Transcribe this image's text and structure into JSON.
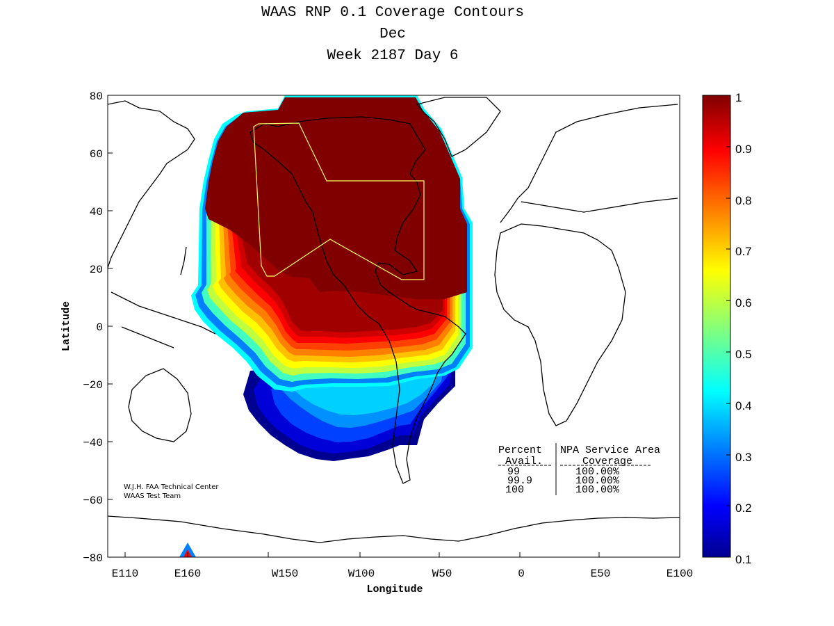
{
  "title": {
    "line1": "WAAS RNP 0.1 Coverage Contours",
    "line2": "Dec",
    "line3": "Week 2187 Day 6"
  },
  "axes": {
    "xlabel": "Longitude",
    "ylabel": "Latitude",
    "x_ticks": [
      "E110",
      "E160",
      "W150",
      "W100",
      "W50",
      "0",
      "E50",
      "E100"
    ],
    "y_ticks": [
      "80",
      "60",
      "40",
      "20",
      "0",
      "−20",
      "−40",
      "−60",
      "−80"
    ]
  },
  "colorbar": {
    "ticks": [
      "1",
      "0.9",
      "0.8",
      "0.7",
      "0.6",
      "0.5",
      "0.4",
      "0.3",
      "0.2",
      "0.1"
    ],
    "colors": [
      "#00008f",
      "#0000ff",
      "#00ffff",
      "#ffff00",
      "#ff0000",
      "#800000"
    ]
  },
  "credit": {
    "line1": "W.J.H. FAA Technical Center",
    "line2": "WAAS Test Team"
  },
  "coverage_table": {
    "col1_header": "Percent",
    "col1_sub": "Avail.",
    "col2_header": "NPA Service Area",
    "col2_sub": "Coverage",
    "rows": [
      {
        "avail": "99",
        "coverage": "100.00%"
      },
      {
        "avail": "99.9",
        "coverage": "100.00%"
      },
      {
        "avail": "100",
        "coverage": "100.00%"
      }
    ]
  },
  "chart_data": {
    "type": "heatmap",
    "x_range_deg_east": [
      100,
      460
    ],
    "y_range_lat": [
      -80,
      80
    ],
    "value_range": [
      0.1,
      1
    ],
    "colormap": "jet",
    "note": "Coverage contours centered over North America; 1.0 over North America, decreasing southward over the Pacific to about 0.1 near 45S."
  }
}
